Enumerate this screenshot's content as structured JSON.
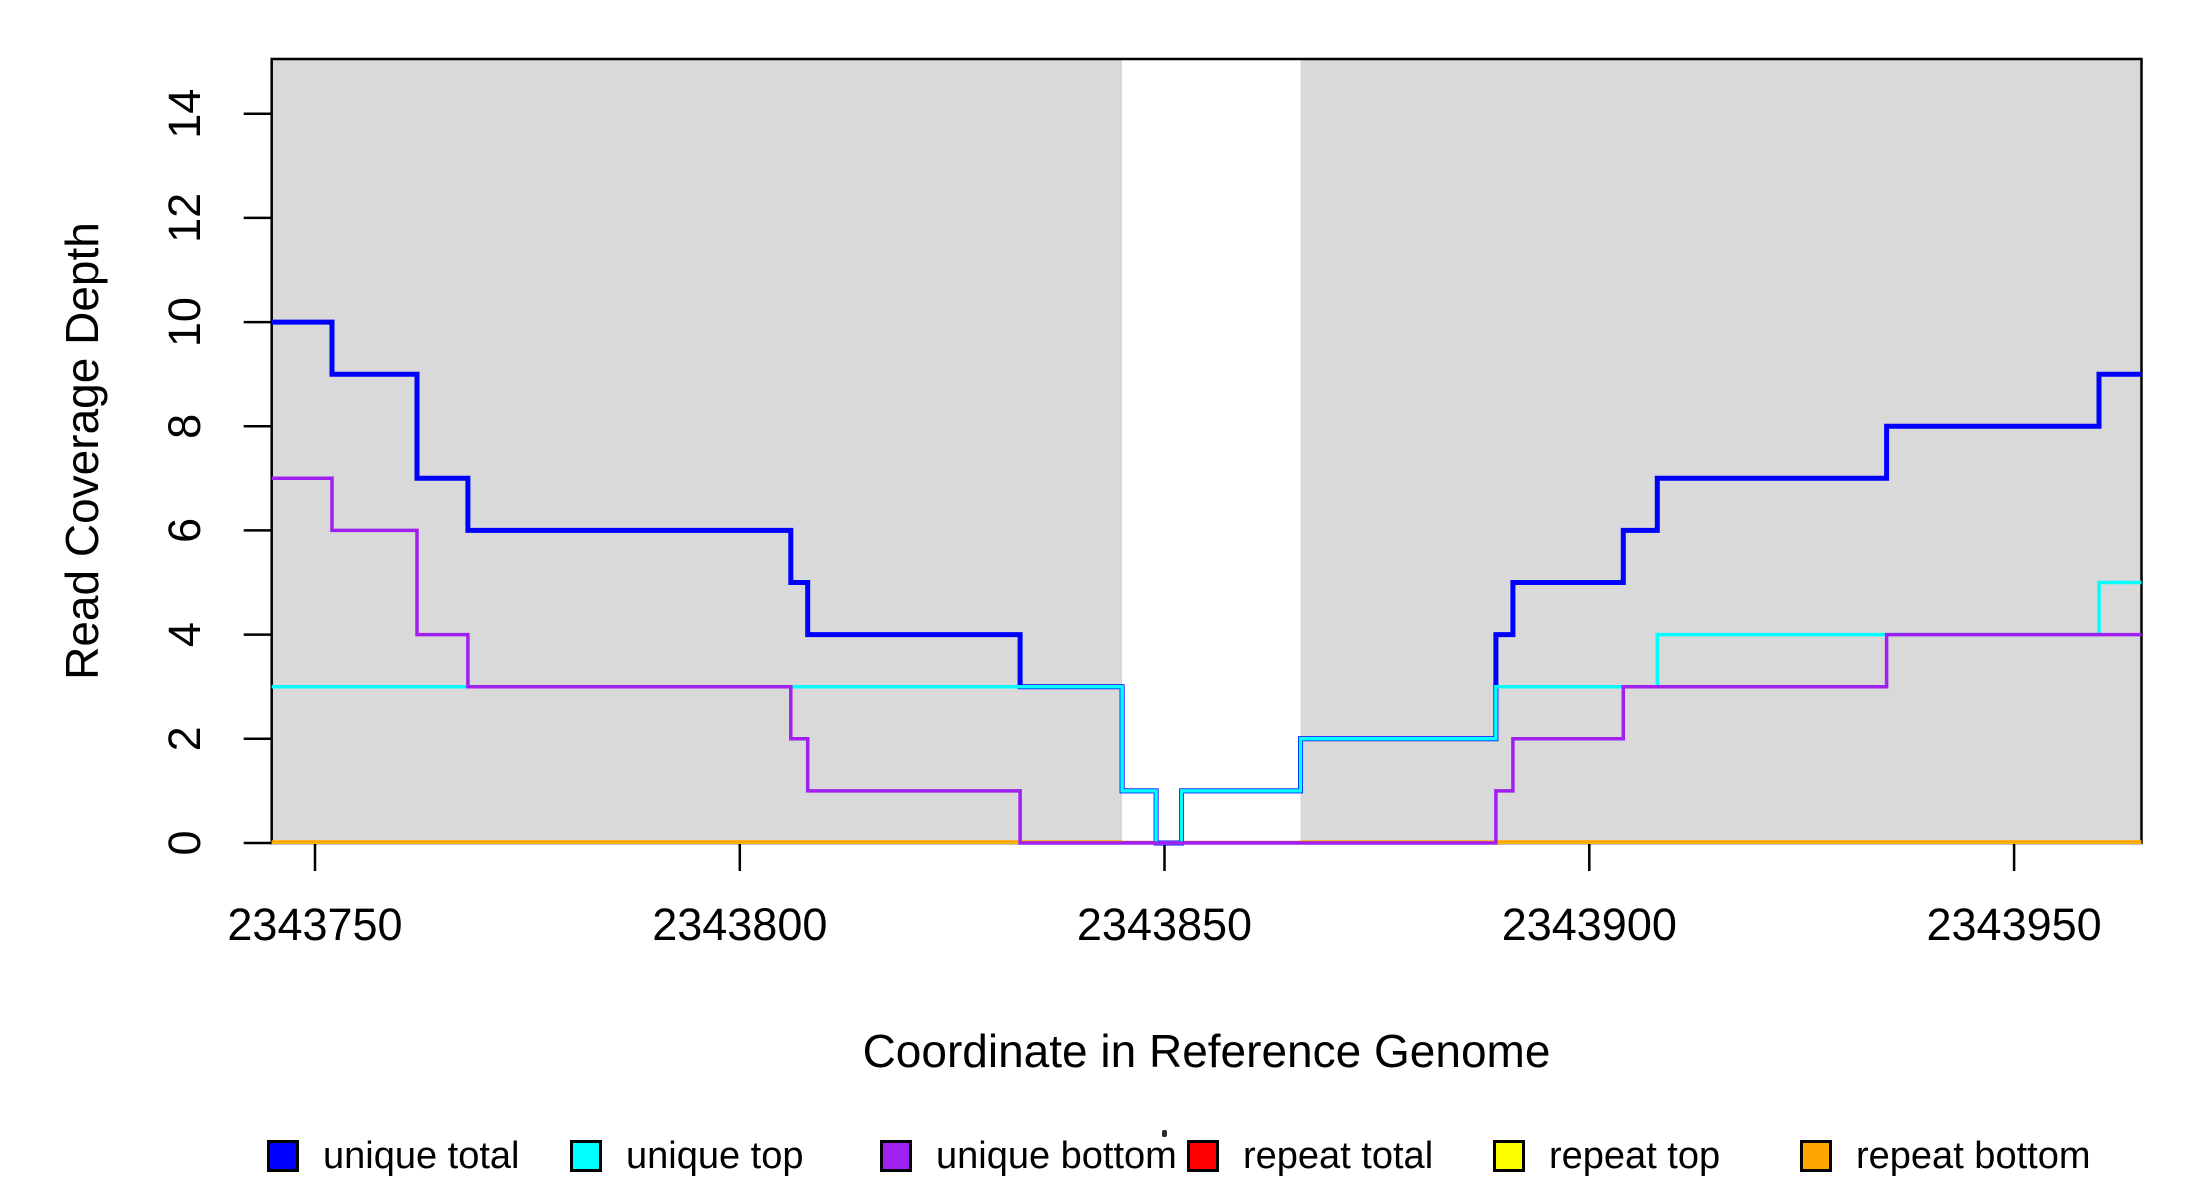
{
  "figure": {
    "xlabel": "Coordinate in Reference Genome",
    "ylabel": "Read Coverage Depth",
    "background_color": "#FFFFFF",
    "shaded_region_color": "#D9D9D9",
    "box_color": "#000000"
  },
  "chart_data": {
    "type": "line",
    "subtype": "step-coverage",
    "title": "",
    "xlabel": "Coordinate in Reference Genome",
    "ylabel": "Read Coverage Depth",
    "xlim": [
      2343744.9,
      2343965.0
    ],
    "ylim": [
      0,
      15.05
    ],
    "grid": false,
    "legend_position": "bottom",
    "xticks": [
      {
        "value": 2343750,
        "label": "2343750"
      },
      {
        "value": 2343800,
        "label": "2343800"
      },
      {
        "value": 2343850,
        "label": "2343850"
      },
      {
        "value": 2343900,
        "label": "2343900"
      },
      {
        "value": 2343950,
        "label": "2343950"
      }
    ],
    "yticks": [
      {
        "value": 0,
        "label": "0"
      },
      {
        "value": 2,
        "label": "2"
      },
      {
        "value": 4,
        "label": "4"
      },
      {
        "value": 6,
        "label": "6"
      },
      {
        "value": 8,
        "label": "8"
      },
      {
        "value": 10,
        "label": "10"
      },
      {
        "value": 12,
        "label": "12"
      },
      {
        "value": 14,
        "label": "14"
      }
    ],
    "shaded_regions": [
      {
        "x0": 2343744.9,
        "x1": 2343845,
        "color": "#D9D9D9"
      },
      {
        "x0": 2343866,
        "x1": 2343965.0,
        "color": "#D9D9D9"
      }
    ],
    "series": [
      {
        "name": "repeat total",
        "color": "#FF0000",
        "line_width": 3,
        "steps": [
          [
            2343744.9,
            0
          ]
        ]
      },
      {
        "name": "repeat top",
        "color": "#FFFF00",
        "line_width": 3,
        "segments": [
          {
            "x0": 2343744.9,
            "x1": 2343845,
            "value": 0
          },
          {
            "x0": 2343866,
            "x1": 2343965.0,
            "value": 0
          }
        ]
      },
      {
        "name": "repeat bottom",
        "color": "#FFA500",
        "line_width": 3.2,
        "segments": [
          {
            "x0": 2343744.9,
            "x1": 2343845,
            "value": 0
          },
          {
            "x0": 2343866,
            "x1": 2343965.0,
            "value": 0
          }
        ]
      },
      {
        "name": "unique total",
        "color": "#0000FF",
        "line_width": 5,
        "steps": [
          [
            2343744.9,
            10
          ],
          [
            2343752,
            9
          ],
          [
            2343762,
            7
          ],
          [
            2343768,
            6
          ],
          [
            2343806,
            5
          ],
          [
            2343808,
            4
          ],
          [
            2343833,
            3
          ],
          [
            2343845,
            1
          ],
          [
            2343849,
            0
          ],
          [
            2343852,
            1
          ],
          [
            2343866,
            2
          ],
          [
            2343889,
            4
          ],
          [
            2343891,
            5
          ],
          [
            2343904,
            6
          ],
          [
            2343908,
            7
          ],
          [
            2343935,
            8
          ],
          [
            2343960,
            9
          ]
        ]
      },
      {
        "name": "unique top",
        "color": "#00FFFF",
        "line_width": 3.5,
        "steps": [
          [
            2343744.9,
            3
          ],
          [
            2343845,
            1
          ],
          [
            2343849,
            0
          ],
          [
            2343852,
            1
          ],
          [
            2343866,
            2
          ],
          [
            2343889,
            3
          ],
          [
            2343908,
            4
          ],
          [
            2343960,
            5
          ]
        ]
      },
      {
        "name": "unique bottom",
        "color": "#A020F0",
        "line_width": 3.5,
        "steps": [
          [
            2343744.9,
            7
          ],
          [
            2343752,
            6
          ],
          [
            2343762,
            4
          ],
          [
            2343768,
            3
          ],
          [
            2343806,
            2
          ],
          [
            2343808,
            1
          ],
          [
            2343833,
            0
          ],
          [
            2343889,
            1
          ],
          [
            2343891,
            2
          ],
          [
            2343904,
            3
          ],
          [
            2343935,
            4
          ]
        ]
      }
    ]
  },
  "legend": {
    "items": [
      {
        "label": "unique total",
        "color": "#0000FF"
      },
      {
        "label": "unique top",
        "color": "#00FFFF"
      },
      {
        "label": "unique bottom",
        "color": "#A020F0"
      },
      {
        "label": "repeat total",
        "color": "#FF0000"
      },
      {
        "label": "repeat top",
        "color": "#FFFF00"
      },
      {
        "label": "repeat bottom",
        "color": "#FFA500"
      }
    ]
  }
}
